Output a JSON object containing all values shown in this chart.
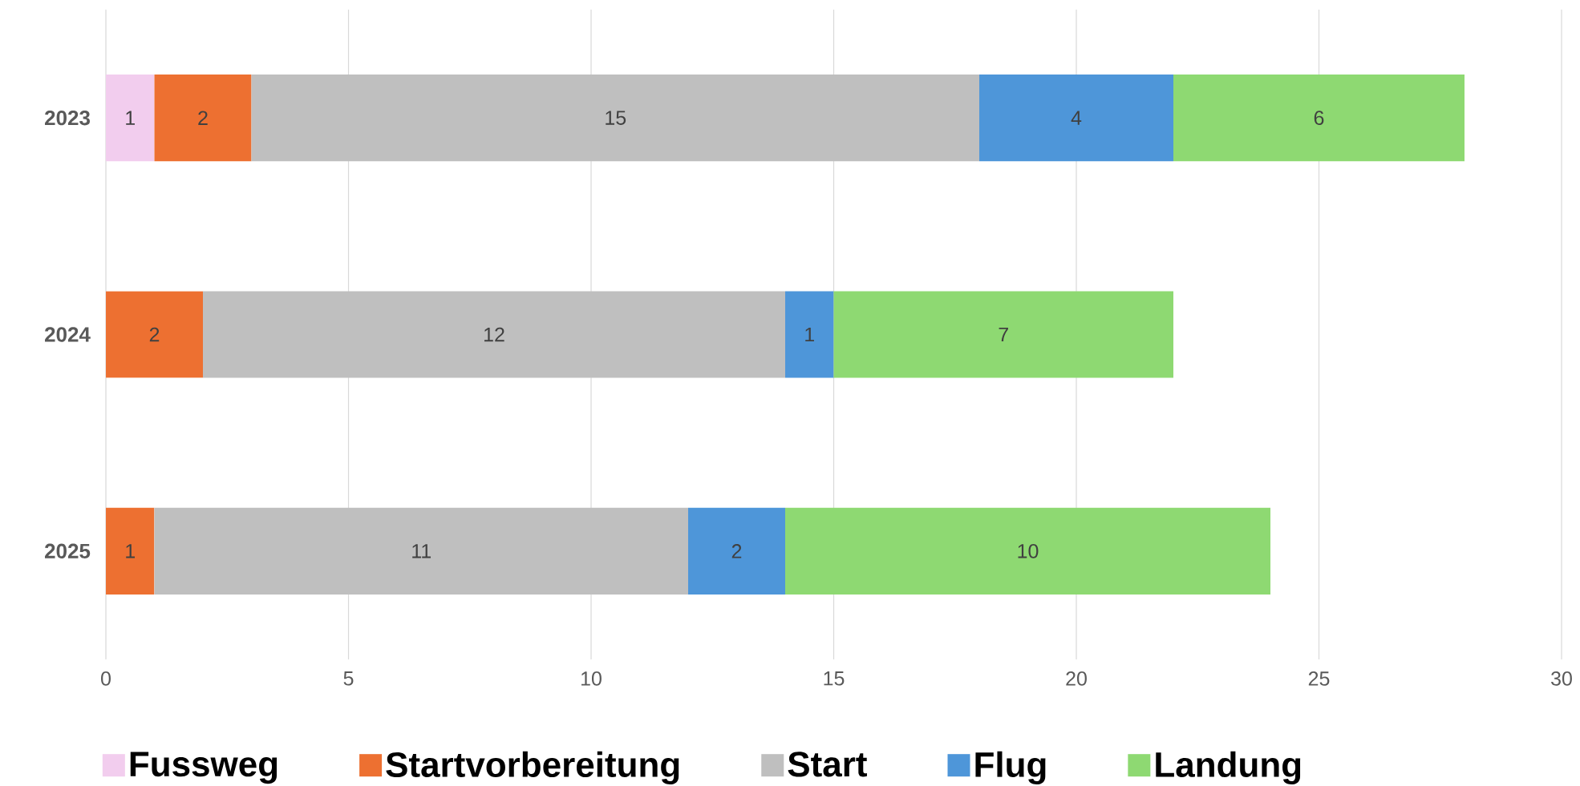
{
  "chart_data": {
    "type": "bar",
    "orientation": "horizontal",
    "stacked": true,
    "categories": [
      "2023",
      "2024",
      "2025"
    ],
    "series": [
      {
        "name": "Fussweg",
        "color": "#f2cdee",
        "values": [
          1,
          null,
          null
        ]
      },
      {
        "name": "Startvorbereitung",
        "color": "#ed7031",
        "values": [
          2,
          2,
          1
        ]
      },
      {
        "name": "Start",
        "color": "#bfbfbf",
        "values": [
          15,
          12,
          11
        ]
      },
      {
        "name": "Flug",
        "color": "#4e96d9",
        "values": [
          4,
          1,
          2
        ]
      },
      {
        "name": "Landung",
        "color": "#8ed972",
        "values": [
          6,
          7,
          10
        ]
      }
    ],
    "xlim": [
      0,
      30
    ],
    "xticks": [
      0,
      5,
      10,
      15,
      20,
      25,
      30
    ],
    "grid": "x",
    "legend": "bottom",
    "data_labels": true
  }
}
